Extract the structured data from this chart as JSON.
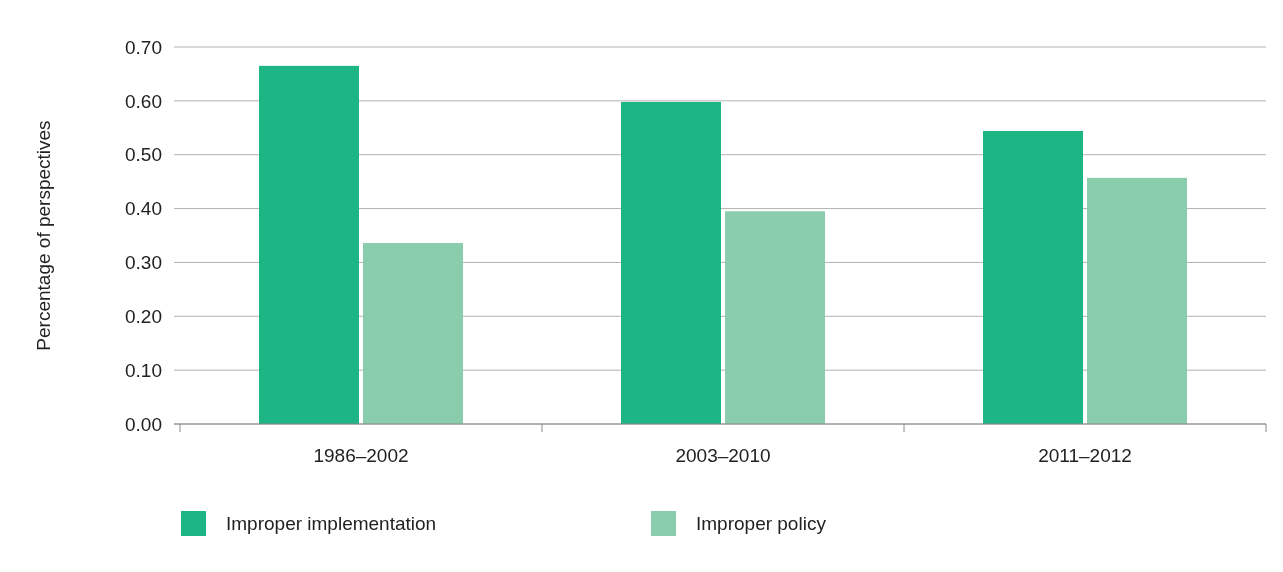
{
  "chart_data": {
    "type": "bar",
    "ylabel": "Percentage of perspectives",
    "categories": [
      "1986–2002",
      "2003–2010",
      "2011–2012"
    ],
    "series": [
      {
        "name": "Improper implementation",
        "color": "#1db584",
        "values": [
          0.665,
          0.598,
          0.544
        ]
      },
      {
        "name": "Improper policy",
        "color": "#89cdad",
        "values": [
          0.336,
          0.395,
          0.457
        ]
      }
    ],
    "ylim": [
      0,
      0.7
    ],
    "yticks": [
      {
        "value": 0,
        "label": "0.00"
      },
      {
        "value": 0.1,
        "label": "0.10"
      },
      {
        "value": 0.2,
        "label": "0.20"
      },
      {
        "value": 0.3,
        "label": "0.30"
      },
      {
        "value": 0.4,
        "label": "0.40"
      },
      {
        "value": 0.5,
        "label": "0.50"
      },
      {
        "value": 0.6,
        "label": "0.60"
      },
      {
        "value": 0.7,
        "label": "0.70"
      }
    ],
    "grid": "y",
    "legend": "bottom"
  }
}
